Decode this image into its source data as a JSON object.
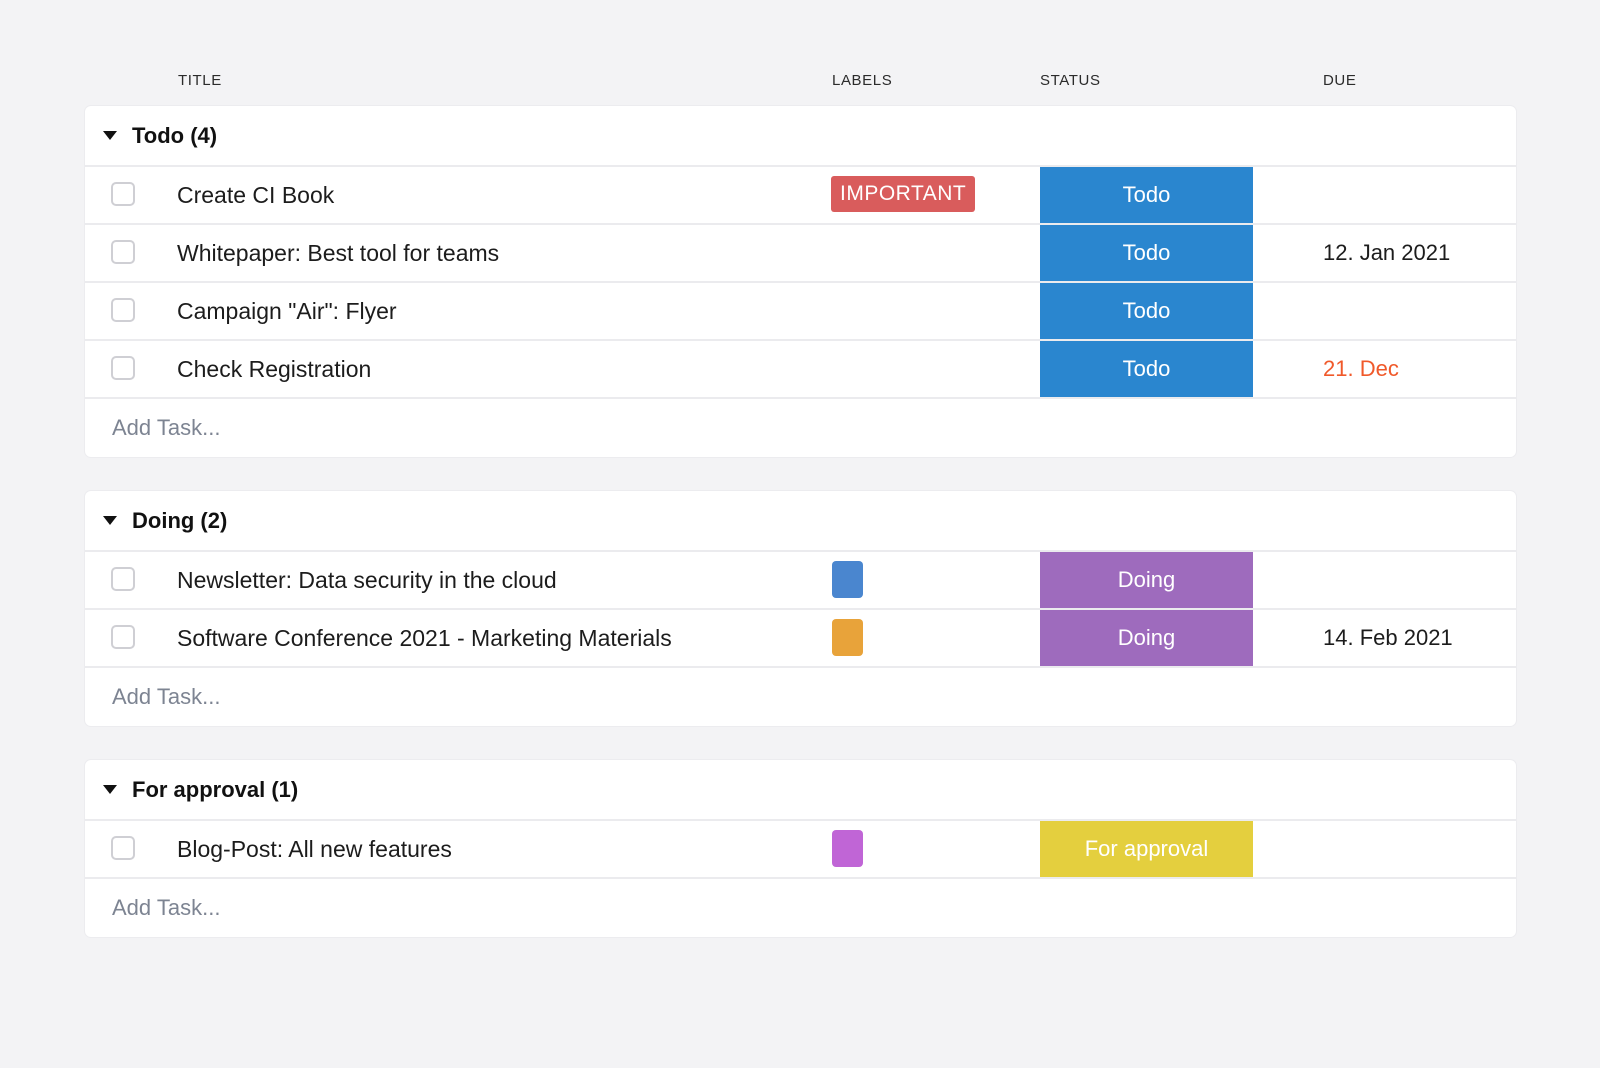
{
  "columns": {
    "title": "TITLE",
    "labels": "LABELS",
    "status": "STATUS",
    "due": "DUE"
  },
  "colors": {
    "todo": "#2a86cf",
    "doing": "#9e6bbd",
    "approval": "#e4cf3e",
    "important": "#d95c5c",
    "overdue": "#f0592a"
  },
  "groups": [
    {
      "title": "Todo (4)",
      "add_task": "Add Task...",
      "tasks": [
        {
          "title": "Create CI Book",
          "label": "IMPORTANT",
          "status": "Todo",
          "due": ""
        },
        {
          "title": "Whitepaper: Best tool for teams",
          "status": "Todo",
          "due": "12. Jan 2021"
        },
        {
          "title": "Campaign \"Air\": Flyer",
          "status": "Todo",
          "due": ""
        },
        {
          "title": "Check Registration",
          "status": "Todo",
          "due": "21. Dec"
        }
      ]
    },
    {
      "title": "Doing (2)",
      "add_task": "Add Task...",
      "tasks": [
        {
          "title": "Newsletter: Data security in the cloud",
          "label_color": "#4a86cf",
          "status": "Doing",
          "due": ""
        },
        {
          "title": "Software Conference 2021 - Marketing Materials",
          "label_color": "#e8a33a",
          "status": "Doing",
          "due": "14. Feb 2021"
        }
      ]
    },
    {
      "title": "For approval (1)",
      "add_task": "Add Task...",
      "tasks": [
        {
          "title": "Blog-Post: All new features",
          "label_color": "#c065d6",
          "status": "For approval",
          "due": ""
        }
      ]
    }
  ]
}
